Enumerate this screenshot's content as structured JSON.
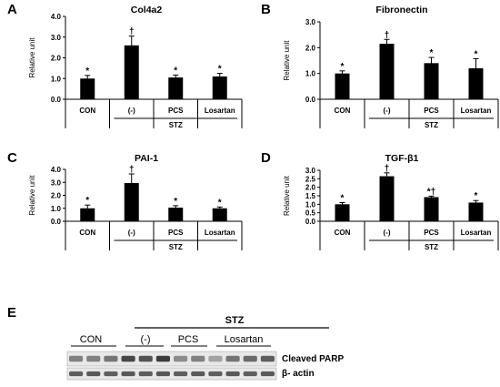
{
  "panel_letters": [
    "A",
    "B",
    "C",
    "D",
    "E"
  ],
  "chart_data": [
    {
      "type": "bar",
      "title": "Col4a2",
      "ylabel": "Relative unit",
      "ylim": [
        0,
        4.0
      ],
      "ticks": [
        "0.0",
        "1.0",
        "2.0",
        "3.0",
        "4.0"
      ],
      "categories": [
        "CON",
        "(-)",
        "PCS",
        "Losartan"
      ],
      "group_label": "STZ",
      "values": [
        1.0,
        2.6,
        1.05,
        1.1
      ],
      "errors": [
        0.15,
        0.45,
        0.12,
        0.15
      ],
      "annotations": [
        "*",
        "†",
        "*",
        "*"
      ]
    },
    {
      "type": "bar",
      "title": "Fibronectin",
      "ylabel": "Relative unit",
      "ylim": [
        0,
        3.0
      ],
      "ticks": [
        "0.0",
        "1.0",
        "2.0",
        "3.0"
      ],
      "categories": [
        "CON",
        "(-)",
        "PCS",
        "Losartan"
      ],
      "group_label": "STZ",
      "values": [
        1.0,
        2.15,
        1.4,
        1.2
      ],
      "errors": [
        0.1,
        0.17,
        0.22,
        0.37
      ],
      "annotations": [
        "*",
        "†",
        "*",
        "*"
      ]
    },
    {
      "type": "bar",
      "title": "PAI-1",
      "ylabel": "Relative unit",
      "ylim": [
        0,
        4.0
      ],
      "ticks": [
        "0.0",
        "1.0",
        "2.0",
        "3.0",
        "4.0"
      ],
      "categories": [
        "CON",
        "(-)",
        "PCS",
        "Losartan"
      ],
      "group_label": "STZ",
      "values": [
        1.0,
        2.95,
        1.05,
        1.0
      ],
      "errors": [
        0.25,
        0.7,
        0.15,
        0.1
      ],
      "annotations": [
        "*",
        "†",
        "*",
        "*"
      ]
    },
    {
      "type": "bar",
      "title": "TGF-β1",
      "ylabel": "Relative unit",
      "ylim": [
        0,
        3.0
      ],
      "ticks": [
        "0.0",
        "0.5",
        "1.0",
        "1.5",
        "2.0",
        "2.5",
        "3.0"
      ],
      "categories": [
        "CON",
        "(-)",
        "PCS",
        "Losartan"
      ],
      "group_label": "STZ",
      "values": [
        1.0,
        2.65,
        1.42,
        1.1
      ],
      "errors": [
        0.1,
        0.2,
        0.06,
        0.12
      ],
      "annotations": [
        "*",
        "†",
        "*†",
        "*"
      ]
    }
  ],
  "blot": {
    "group_label": "STZ",
    "lanes": [
      "CON",
      "(-)",
      "PCS",
      "Losartan"
    ],
    "bands": [
      "Cleaved PARP",
      "β- actin"
    ]
  }
}
